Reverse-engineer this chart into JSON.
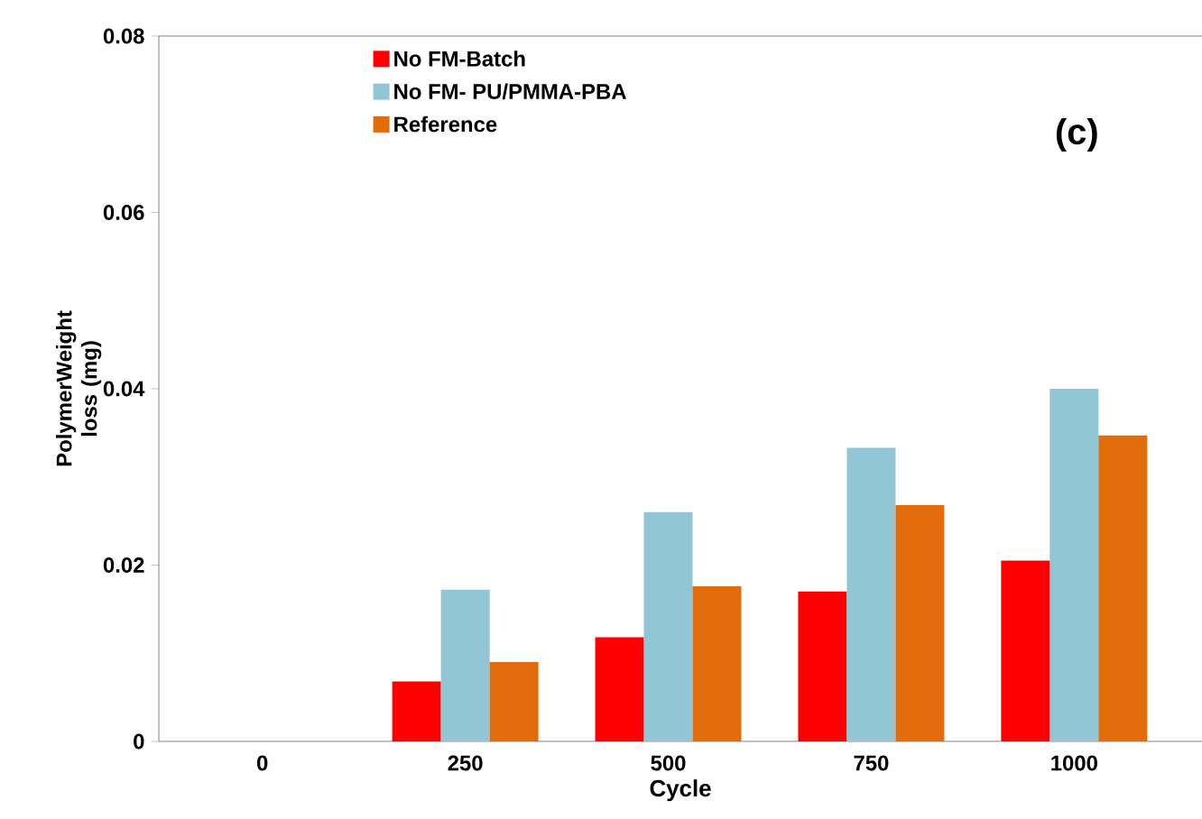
{
  "chart_data": {
    "type": "bar",
    "xlabel": "Cycle",
    "ylabel": "PolymerWeight loss (mg)",
    "categories": [
      "0",
      "250",
      "500",
      "750",
      "1000"
    ],
    "series": [
      {
        "name": "No FM-Batch",
        "color": "#ff0000",
        "values": [
          0,
          0.0068,
          0.0118,
          0.017,
          0.0205
        ]
      },
      {
        "name": "No FM- PU/PMMA-PBA",
        "color": "#92c5d6",
        "values": [
          0,
          0.0172,
          0.026,
          0.0333,
          0.04
        ]
      },
      {
        "name": "Reference",
        "color": "#e36c0a",
        "values": [
          0,
          0.009,
          0.0176,
          0.0268,
          0.0347
        ]
      }
    ],
    "ylim": [
      0,
      0.08
    ],
    "yticks": [
      0,
      0.02,
      0.04,
      0.06,
      0.08
    ],
    "annotations": [
      "(c)"
    ],
    "grid": false,
    "legend": "top left"
  }
}
